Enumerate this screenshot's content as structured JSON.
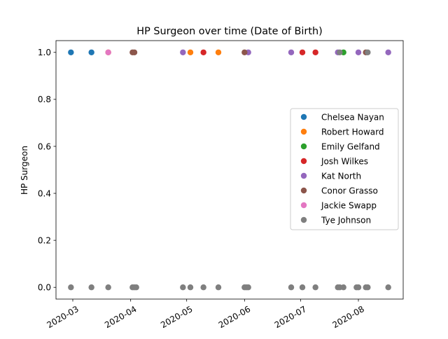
{
  "chart_data": {
    "type": "scatter",
    "title": "HP Surgeon over time (Date of Birth)",
    "xlabel": "",
    "ylabel": "HP Surgeon",
    "x_type": "date",
    "xlim": [
      "2020-02-21",
      "2020-08-25"
    ],
    "ylim": [
      -0.05,
      1.05
    ],
    "x_ticks": [
      "2020-03",
      "2020-04",
      "2020-05",
      "2020-06",
      "2020-07",
      "2020-08"
    ],
    "x_tick_dates": [
      "2020-03-01",
      "2020-04-01",
      "2020-05-01",
      "2020-06-01",
      "2020-07-01",
      "2020-08-01"
    ],
    "y_ticks": [
      0.0,
      0.2,
      0.4,
      0.6,
      0.8,
      1.0
    ],
    "y_tick_labels": [
      "0.0",
      "0.2",
      "0.4",
      "0.6",
      "0.8",
      "1.0"
    ],
    "grid": false,
    "legend_position": "center-right",
    "zero_dates": [
      "2020-02-29",
      "2020-03-11",
      "2020-03-20",
      "2020-04-02",
      "2020-04-03",
      "2020-04-04",
      "2020-04-29",
      "2020-05-03",
      "2020-05-10",
      "2020-05-18",
      "2020-06-01",
      "2020-06-02",
      "2020-06-03",
      "2020-06-26",
      "2020-07-02",
      "2020-07-09",
      "2020-07-21",
      "2020-07-22",
      "2020-07-24",
      "2020-07-31",
      "2020-08-01",
      "2020-08-05",
      "2020-08-06",
      "2020-08-17"
    ],
    "series": [
      {
        "name": "Chelsea Nayan",
        "color": "#1f77b4",
        "x": [
          "2020-02-29",
          "2020-03-11"
        ],
        "y": [
          1,
          1
        ]
      },
      {
        "name": "Robert Howard",
        "color": "#ff7f0e",
        "x": [
          "2020-03-20",
          "2020-05-03",
          "2020-05-18"
        ],
        "y": [
          1,
          1,
          1
        ]
      },
      {
        "name": "Emily Gelfand",
        "color": "#2ca02c",
        "x": [
          "2020-07-24"
        ],
        "y": [
          1
        ]
      },
      {
        "name": "Josh Wilkes",
        "color": "#d62728",
        "x": [
          "2020-05-10",
          "2020-07-02",
          "2020-07-09"
        ],
        "y": [
          1,
          1,
          1
        ]
      },
      {
        "name": "Kat North",
        "color": "#9467bd",
        "x": [
          "2020-04-29",
          "2020-06-03",
          "2020-06-26",
          "2020-07-21",
          "2020-08-01",
          "2020-08-17"
        ],
        "y": [
          1,
          1,
          1,
          1,
          1,
          1
        ]
      },
      {
        "name": "Conor Grasso",
        "color": "#8c564b",
        "x": [
          "2020-04-02",
          "2020-04-03",
          "2020-06-01",
          "2020-08-05"
        ],
        "y": [
          1,
          1,
          1,
          1
        ]
      },
      {
        "name": "Jackie Swapp",
        "color": "#e377c2",
        "x": [
          "2020-03-20"
        ],
        "y": [
          1
        ]
      },
      {
        "name": "Tye Johnson",
        "color": "#7f7f7f",
        "x": [
          "2020-02-29",
          "2020-03-11",
          "2020-03-20",
          "2020-04-02",
          "2020-04-03",
          "2020-04-04",
          "2020-04-29",
          "2020-05-03",
          "2020-05-10",
          "2020-05-18",
          "2020-06-01",
          "2020-06-02",
          "2020-06-03",
          "2020-06-26",
          "2020-07-02",
          "2020-07-09",
          "2020-07-21",
          "2020-07-22",
          "2020-07-24",
          "2020-07-31",
          "2020-08-01",
          "2020-08-05",
          "2020-08-06",
          "2020-08-17",
          "2020-07-22",
          "2020-08-06"
        ],
        "y": [
          0,
          0,
          0,
          0,
          0,
          0,
          0,
          0,
          0,
          0,
          0,
          0,
          0,
          0,
          0,
          0,
          0,
          0,
          0,
          0,
          0,
          0,
          0,
          0,
          1,
          1
        ]
      }
    ]
  }
}
